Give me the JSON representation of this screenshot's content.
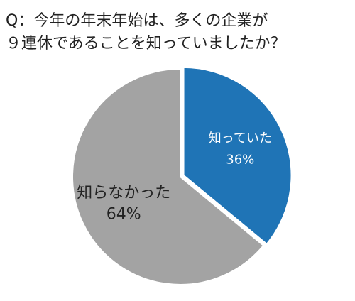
{
  "chart_data": {
    "type": "pie",
    "title": [
      "Q：今年の年末年始は、多くの企業が",
      "９連休であることを知っていましたか？"
    ],
    "categories": [
      "知っていた",
      "知らなかった"
    ],
    "values": [
      36,
      64
    ],
    "value_labels": [
      "36%",
      "64%"
    ],
    "colors": [
      "#1f74b6",
      "#a3a3a3"
    ],
    "label_colors": [
      "#ffffff",
      "#222222"
    ]
  }
}
